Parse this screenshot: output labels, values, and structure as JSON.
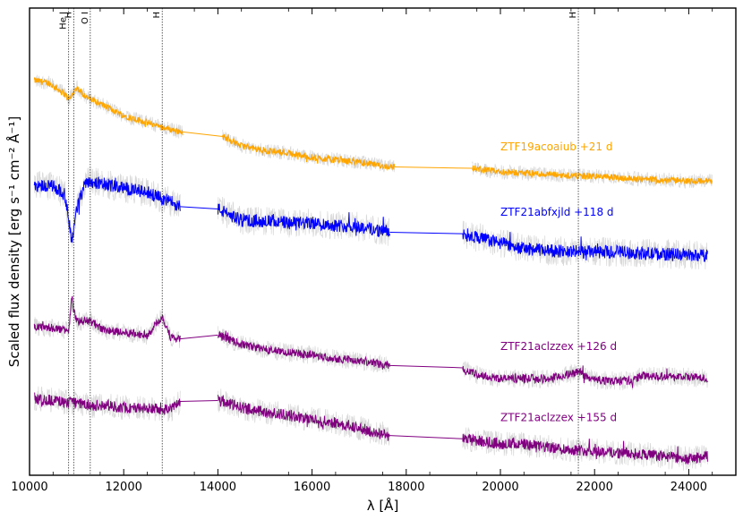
{
  "chart_data": {
    "type": "line",
    "title": "",
    "xlabel": "λ [Å]",
    "ylabel": "Scaled flux density [erg s⁻¹ cm⁻² Å⁻¹]",
    "xlim": [
      10000,
      25000
    ],
    "ylim": [
      0,
      1
    ],
    "x_ticks": [
      10000,
      12000,
      14000,
      16000,
      18000,
      20000,
      22000,
      24000
    ],
    "grid": false,
    "line_markers": [
      {
        "label": "He I",
        "x": 10830
      },
      {
        "label": "H",
        "x": 10938
      },
      {
        "label": "O I",
        "x": 11290
      },
      {
        "label": "H",
        "x": 12818
      },
      {
        "label": "H",
        "x": 21655
      }
    ],
    "series": [
      {
        "name": "ZTF19acoaiub",
        "label": "ZTF19acoaiub +21 d",
        "color": "#FFA500",
        "segments": [
          {
            "x": [
              10100,
              10400,
              10700,
              10850,
              11000,
              11200,
              11500,
              12000,
              12500,
              13000,
              13250
            ],
            "y": [
              0.845,
              0.84,
              0.82,
              0.805,
              0.83,
              0.81,
              0.795,
              0.77,
              0.755,
              0.74,
              0.735
            ]
          },
          {
            "x": [
              14100,
              14500,
              15000,
              15500,
              16000,
              16500,
              17000,
              17500,
              17750
            ],
            "y": [
              0.725,
              0.705,
              0.695,
              0.69,
              0.68,
              0.675,
              0.67,
              0.662,
              0.66
            ]
          },
          {
            "x": [
              19400,
              20000,
              20500,
              21000,
              21500,
              22000,
              22500,
              23000,
              23500,
              24000,
              24500
            ],
            "y": [
              0.657,
              0.649,
              0.647,
              0.644,
              0.641,
              0.64,
              0.637,
              0.634,
              0.632,
              0.63,
              0.63
            ]
          }
        ],
        "noise": 0.007
      },
      {
        "name": "ZTF21abfxjld",
        "label": "ZTF21abfxjld +118 d",
        "color": "#0000FF",
        "segments": [
          {
            "x": [
              10100,
              10500,
              10750,
              10830,
              10900,
              11000,
              11200,
              11500,
              12000,
              12500,
              13000,
              13200
            ],
            "y": [
              0.62,
              0.62,
              0.6,
              0.55,
              0.5,
              0.57,
              0.63,
              0.625,
              0.615,
              0.605,
              0.585,
              0.575
            ]
          },
          {
            "x": [
              14000,
              14500,
              15000,
              15500,
              16000,
              16500,
              17000,
              17650
            ],
            "y": [
              0.57,
              0.545,
              0.545,
              0.54,
              0.54,
              0.535,
              0.532,
              0.52
            ]
          },
          {
            "x": [
              19200,
              20000,
              20500,
              21000,
              21500,
              22000,
              22500,
              23000,
              23500,
              24000,
              24400
            ],
            "y": [
              0.517,
              0.497,
              0.485,
              0.481,
              0.479,
              0.478,
              0.478,
              0.475,
              0.473,
              0.472,
              0.47
            ]
          }
        ],
        "noise": 0.014
      },
      {
        "name": "ZTF21aclzzex",
        "label": "ZTF21aclzzex +126 d",
        "color": "#800080",
        "segments": [
          {
            "x": [
              10100,
              10500,
              10830,
              10900,
              11000,
              11300,
              11600,
              12000,
              12500,
              12818,
              13000,
              13200
            ],
            "y": [
              0.32,
              0.315,
              0.31,
              0.38,
              0.33,
              0.33,
              0.31,
              0.305,
              0.3,
              0.34,
              0.295,
              0.292
            ]
          },
          {
            "x": [
              14000,
              14500,
              15000,
              15500,
              16000,
              16500,
              17000,
              17650
            ],
            "y": [
              0.3,
              0.28,
              0.27,
              0.262,
              0.258,
              0.25,
              0.246,
              0.235
            ]
          },
          {
            "x": [
              19200,
              19500,
              20000,
              20500,
              21000,
              21655,
              22000,
              22500,
              22800,
              23000,
              23500,
              24000,
              24400
            ],
            "y": [
              0.23,
              0.215,
              0.207,
              0.207,
              0.206,
              0.22,
              0.204,
              0.202,
              0.202,
              0.213,
              0.212,
              0.21,
              0.207
            ]
          }
        ],
        "noise": 0.009
      },
      {
        "name": "ZTF21aclzzex",
        "label": "ZTF21aclzzex +155 d",
        "color": "#800080",
        "segments": [
          {
            "x": [
              10100,
              10500,
              10900,
              11300,
              11700,
              12000,
              12500,
              13000,
              13200
            ],
            "y": [
              0.165,
              0.16,
              0.155,
              0.15,
              0.148,
              0.145,
              0.143,
              0.14,
              0.158
            ]
          },
          {
            "x": [
              14000,
              14500,
              15000,
              15500,
              16000,
              16500,
              17000,
              17650
            ],
            "y": [
              0.16,
              0.145,
              0.135,
              0.128,
              0.12,
              0.112,
              0.1,
              0.085
            ]
          },
          {
            "x": [
              19200,
              20000,
              20500,
              21000,
              21500,
              22000,
              22500,
              23000,
              23500,
              24000,
              24400
            ],
            "y": [
              0.078,
              0.068,
              0.066,
              0.06,
              0.055,
              0.052,
              0.048,
              0.045,
              0.04,
              0.035,
              0.04
            ]
          }
        ],
        "noise": 0.012
      }
    ]
  }
}
